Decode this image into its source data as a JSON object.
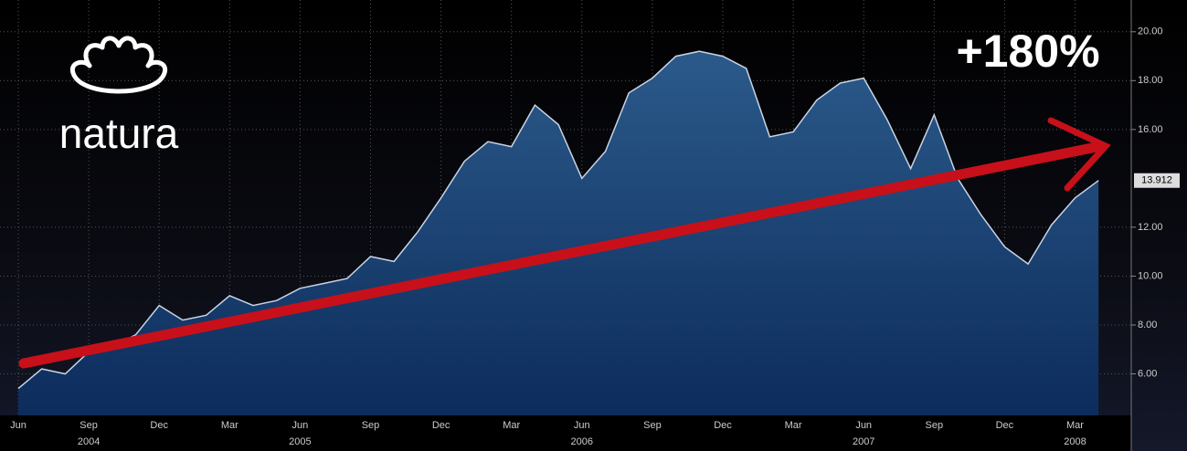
{
  "chart_data": {
    "type": "area",
    "brand": "natura",
    "annotation": "+180%",
    "x": [
      "2004-06",
      "2004-07",
      "2004-08",
      "2004-09",
      "2004-10",
      "2004-11",
      "2004-12",
      "2005-01",
      "2005-02",
      "2005-03",
      "2005-04",
      "2005-05",
      "2005-06",
      "2005-07",
      "2005-08",
      "2005-09",
      "2005-10",
      "2005-11",
      "2005-12",
      "2006-01",
      "2006-02",
      "2006-03",
      "2006-04",
      "2006-05",
      "2006-06",
      "2006-07",
      "2006-08",
      "2006-09",
      "2006-10",
      "2006-11",
      "2006-12",
      "2007-01",
      "2007-02",
      "2007-03",
      "2007-04",
      "2007-05",
      "2007-06",
      "2007-07",
      "2007-08",
      "2007-09",
      "2007-10",
      "2007-11",
      "2007-12",
      "2008-01",
      "2008-02",
      "2008-03",
      "2008-04"
    ],
    "values": [
      5.4,
      6.2,
      6.0,
      6.9,
      7.1,
      7.6,
      8.8,
      8.2,
      8.4,
      9.2,
      8.8,
      9.0,
      9.5,
      9.7,
      9.9,
      10.8,
      10.6,
      11.8,
      13.2,
      14.7,
      15.5,
      15.3,
      17.0,
      16.2,
      14.0,
      15.1,
      17.5,
      18.1,
      19.0,
      19.2,
      19.0,
      18.5,
      15.7,
      15.9,
      17.2,
      17.9,
      18.1,
      16.4,
      14.4,
      16.6,
      14.0,
      12.5,
      11.2,
      10.5,
      12.1,
      13.2,
      13.912
    ],
    "color": "#c8d4e6",
    "ylim": [
      4.3,
      21.3
    ],
    "yticks": [
      {
        "value": 6,
        "label": "6.00"
      },
      {
        "value": 8,
        "label": "8.00"
      },
      {
        "value": 10,
        "label": "10.00"
      },
      {
        "value": 12,
        "label": "12.00"
      },
      {
        "value": 16,
        "label": "16.00"
      },
      {
        "value": 18,
        "label": "18.00"
      },
      {
        "value": 20,
        "label": "20.00"
      }
    ],
    "xticks": [
      {
        "value": "2004-06",
        "label": "Jun"
      },
      {
        "value": "2004-09",
        "label": "Sep"
      },
      {
        "value": "2004-12",
        "label": "Dec"
      },
      {
        "value": "2005-03",
        "label": "Mar"
      },
      {
        "value": "2005-06",
        "label": "Jun"
      },
      {
        "value": "2005-09",
        "label": "Sep"
      },
      {
        "value": "2005-12",
        "label": "Dec"
      },
      {
        "value": "2006-03",
        "label": "Mar"
      },
      {
        "value": "2006-06",
        "label": "Jun"
      },
      {
        "value": "2006-09",
        "label": "Sep"
      },
      {
        "value": "2006-12",
        "label": "Dec"
      },
      {
        "value": "2007-03",
        "label": "Mar"
      },
      {
        "value": "2007-06",
        "label": "Jun"
      },
      {
        "value": "2007-09",
        "label": "Sep"
      },
      {
        "value": "2007-12",
        "label": "Dec"
      },
      {
        "value": "2008-03",
        "label": "Mar"
      }
    ],
    "year_labels": [
      {
        "value": "2004-09",
        "label": "2004"
      },
      {
        "value": "2005-06",
        "label": "2005"
      },
      {
        "value": "2006-06",
        "label": "2006"
      },
      {
        "value": "2007-06",
        "label": "2007"
      },
      {
        "value": "2008-03",
        "label": "2008"
      }
    ],
    "grid": true
  }
}
